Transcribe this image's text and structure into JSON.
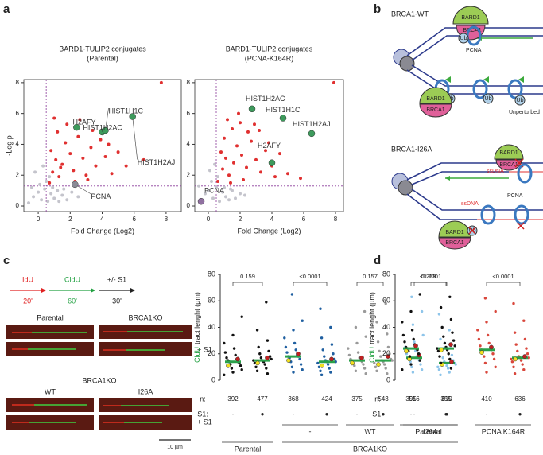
{
  "panel_labels": [
    "a",
    "b",
    "c",
    "d"
  ],
  "a": {
    "plots": [
      {
        "type": "scatter",
        "title": "BARD1-TULIP2 conjugates",
        "subtitle": "(Parental)",
        "x_label": "Fold Change (Log2)",
        "y_label": "-Log p",
        "xlim": [
          -0.9,
          8.95
        ],
        "ylim": [
          -0.36,
          8.2
        ],
        "xticks": [
          0,
          2,
          4,
          6,
          8
        ],
        "yticks": [
          0,
          2,
          4,
          6,
          8
        ],
        "threshold_x": 0.5,
        "threshold_y": 1.3,
        "background": {
          "color": "#c4c4cc",
          "x": [
            -0.6,
            -0.3,
            0.0,
            0.2,
            0.4,
            0.6,
            0.8,
            1.0,
            1.2,
            1.5,
            1.8,
            2.1,
            -0.4,
            0.1,
            0.5,
            0.9,
            1.3,
            -0.2,
            0.3,
            0.7,
            2.5,
            1.6
          ],
          "y": [
            0.2,
            0.6,
            0.9,
            0.4,
            1.1,
            0.3,
            0.8,
            0.5,
            1.0,
            0.7,
            0.4,
            0.9,
            1.2,
            1.4,
            1.6,
            1.2,
            0.3,
            2.2,
            2.6,
            1.9,
            0.6,
            1.1
          ]
        },
        "hits": {
          "color": "#e03030",
          "x": [
            0.7,
            0.9,
            1.1,
            1.3,
            1.5,
            1.7,
            2.0,
            2.2,
            2.5,
            2.8,
            3.0,
            3.3,
            3.6,
            3.9,
            4.2,
            4.6,
            5.0,
            5.5,
            1.2,
            1.8,
            2.6,
            3.4,
            0.8,
            1.0,
            2.3,
            3.1,
            4.4,
            6.6,
            7.7,
            1.4
          ],
          "y": [
            1.5,
            2.2,
            3.0,
            1.9,
            2.7,
            4.1,
            3.4,
            2.3,
            4.5,
            3.1,
            2.0,
            3.8,
            2.6,
            4.3,
            3.2,
            2.1,
            3.5,
            2.6,
            4.8,
            5.3,
            5.6,
            4.9,
            3.6,
            5.7,
            1.6,
            1.7,
            4.0,
            3.0,
            8.0,
            2.5
          ]
        },
        "labeled": [
          {
            "label": "H2AFY",
            "x": 4.0,
            "y": 4.8,
            "color": "#3d9a5c"
          },
          {
            "label": "HIST1H1C",
            "x": 4.2,
            "y": 4.9,
            "color": "#3d9a5c"
          },
          {
            "label": "HIST1H2AC",
            "x": 2.4,
            "y": 5.1,
            "color": "#3d9a5c"
          },
          {
            "label": "HIST1H2AJ",
            "x": 5.9,
            "y": 5.8,
            "color": "#3d9a5c"
          },
          {
            "label": "PCNA",
            "x": 2.3,
            "y": 1.4,
            "color": "#8a8a96"
          }
        ]
      },
      {
        "type": "scatter",
        "title": "BARD1-TULIP2 conjugates",
        "subtitle": "(PCNA-K164R)",
        "x_label": "Fold Change (Log2)",
        "xlim": [
          -0.85,
          8.5
        ],
        "ylim": [
          -0.36,
          8.2
        ],
        "xticks": [
          0,
          2,
          4,
          6,
          8
        ],
        "yticks": [
          0,
          2,
          4,
          6,
          8
        ],
        "threshold_x": 0.5,
        "threshold_y": 1.3,
        "background": {
          "color": "#c4c4cc",
          "x": [
            -0.5,
            -0.2,
            0.0,
            0.3,
            0.5,
            0.7,
            0.9,
            1.1,
            1.4,
            1.7,
            2.0,
            -0.6,
            0.2,
            0.6,
            1.0,
            1.3,
            0.1,
            0.4,
            2.3,
            1.5
          ],
          "y": [
            0.4,
            0.8,
            1.0,
            0.5,
            1.2,
            0.3,
            0.9,
            0.6,
            1.1,
            0.5,
            0.8,
            1.3,
            1.6,
            1.9,
            1.2,
            0.4,
            2.3,
            2.7,
            0.7,
            1.0
          ]
        },
        "hits": {
          "color": "#e03030",
          "x": [
            0.6,
            0.9,
            1.1,
            1.3,
            1.6,
            1.8,
            2.1,
            2.4,
            2.7,
            3.0,
            3.3,
            3.6,
            4.0,
            4.5,
            5.0,
            5.8,
            1.0,
            1.5,
            2.0,
            2.5,
            3.2,
            0.8,
            1.2,
            1.9,
            2.9,
            3.8,
            7.9,
            1.4,
            2.2,
            4.2
          ],
          "y": [
            1.6,
            2.4,
            3.1,
            2.0,
            2.8,
            3.9,
            3.3,
            2.5,
            4.2,
            3.0,
            2.2,
            3.6,
            2.6,
            3.4,
            2.1,
            1.8,
            4.4,
            5.0,
            5.4,
            4.8,
            4.9,
            3.5,
            5.6,
            6.0,
            5.3,
            4.1,
            8.0,
            1.5,
            1.7,
            1.9
          ]
        },
        "labeled": [
          {
            "label": "HIST1H2AC",
            "x": 2.75,
            "y": 6.3,
            "color": "#3d9a5c"
          },
          {
            "label": "HIST1H1C",
            "x": 4.7,
            "y": 5.7,
            "color": "#3d9a5c"
          },
          {
            "label": "HIST1H2AJ",
            "x": 6.5,
            "y": 4.7,
            "color": "#3d9a5c"
          },
          {
            "label": "H2AFY",
            "x": 4.0,
            "y": 2.8,
            "color": "#3d9a5c"
          },
          {
            "label": "PCNA",
            "x": -0.45,
            "y": 0.3,
            "color": "#9070a0"
          }
        ]
      }
    ]
  },
  "b": {
    "labels": [
      "BRCA1-WT",
      "BARD1",
      "BRCA1",
      "Ub",
      "PCNA",
      "Ub",
      "Ub",
      "Ub",
      "BARD1",
      "BRCA1",
      "Unperturbed",
      "BRCA1-I26A",
      "BARD1",
      "BRCA1",
      "ssDNA",
      "PCNA",
      "ssDNA",
      "BARD1",
      "BRCA1",
      "Ub"
    ]
  },
  "c": {
    "schematic": [
      {
        "label": "IdU",
        "time": "20'",
        "color": "#e02020"
      },
      {
        "label": "CldU",
        "time": "60'",
        "color": "#20a040"
      },
      {
        "label": "+/- S1",
        "time": "30'",
        "color": "#222222"
      }
    ],
    "images": {
      "labels": [
        "Parental",
        "BRCA1KO",
        "+ S1",
        "BRCA1KO",
        "WT",
        "I26A",
        "+ S1"
      ],
      "scale_bar": "10 µm"
    },
    "plot": {
      "type": "dot",
      "y_label_colored": "CldU",
      "y_label_rest": "tract lenght (μm)",
      "ylim": [
        0,
        80
      ],
      "yticks": [
        0,
        20,
        40,
        60,
        80
      ],
      "n_label": "n:",
      "s1_label": "S1:",
      "median_color": "#2aa14a",
      "groups": [
        {
          "color": "#111111",
          "n": "392",
          "s1": "-",
          "median": 14,
          "replicates": [
            11,
            16
          ],
          "values": [
            4,
            6,
            8,
            9,
            11,
            12,
            13,
            14,
            14,
            15,
            16,
            17,
            19,
            21,
            24,
            28,
            34,
            48
          ]
        },
        {
          "color": "#111111",
          "n": "477",
          "s1": "●",
          "median": 15,
          "replicates": [
            13,
            17
          ],
          "values": [
            5,
            7,
            9,
            10,
            12,
            13,
            14,
            15,
            15,
            16,
            17,
            18,
            20,
            22,
            25,
            30,
            38,
            59
          ]
        },
        {
          "color": "#1f5fa0",
          "n": "368",
          "s1": "-",
          "median": 18,
          "replicates": [
            15,
            20
          ],
          "values": [
            6,
            8,
            10,
            12,
            14,
            16,
            17,
            18,
            18,
            19,
            21,
            23,
            25,
            28,
            32,
            38,
            45,
            65
          ]
        },
        {
          "color": "#1f5fa0",
          "n": "424",
          "s1": "●",
          "median": 14,
          "replicates": [
            11,
            16
          ],
          "values": [
            4,
            6,
            7,
            9,
            10,
            12,
            13,
            14,
            14,
            15,
            16,
            18,
            20,
            23,
            27,
            32,
            40,
            54
          ]
        },
        {
          "color": "#9a9a9a",
          "n": "375",
          "s1": "-",
          "median": 15,
          "replicates": [
            13,
            17
          ],
          "values": [
            5,
            7,
            9,
            11,
            12,
            13,
            14,
            15,
            15,
            16,
            17,
            19,
            21,
            24,
            28,
            33,
            40,
            52
          ]
        },
        {
          "color": "#9a9a9a",
          "n": "543",
          "s1": "●",
          "median": 15,
          "replicates": [
            12,
            18
          ],
          "values": [
            5,
            7,
            9,
            10,
            12,
            13,
            14,
            15,
            15,
            16,
            18,
            20,
            22,
            25,
            29,
            35,
            44,
            58
          ]
        },
        {
          "color": "#8ec5ea",
          "n": "516",
          "s1": "-",
          "median": 17,
          "replicates": [
            16,
            19
          ],
          "values": [
            6,
            8,
            10,
            12,
            14,
            15,
            16,
            17,
            17,
            18,
            20,
            22,
            25,
            29,
            34,
            42,
            52,
            63
          ]
        },
        {
          "color": "#8ec5ea",
          "n": "610",
          "s1": "●",
          "median": 13,
          "replicates": [
            12,
            14
          ],
          "values": [
            4,
            6,
            8,
            9,
            10,
            11,
            12,
            13,
            13,
            14,
            15,
            17,
            19,
            22,
            26,
            31,
            38,
            50
          ]
        }
      ],
      "comparisons": [
        {
          "label": "0.159",
          "groups": [
            0,
            1
          ]
        },
        {
          "label": "<0.0001",
          "groups": [
            2,
            3
          ]
        },
        {
          "label": "0.157",
          "groups": [
            4,
            5
          ]
        },
        {
          "label": "<0.0001",
          "groups": [
            6,
            7
          ]
        }
      ],
      "group_labels": [
        {
          "label": "Parental",
          "groups": [
            0,
            1
          ]
        },
        {
          "label": "-",
          "groups": [
            2,
            3
          ]
        },
        {
          "label": "WT",
          "groups": [
            4,
            5
          ]
        },
        {
          "label": "I26A",
          "groups": [
            6,
            7
          ]
        },
        {
          "label": "BRCA1KO",
          "groups": [
            2,
            7
          ]
        }
      ]
    }
  },
  "d": {
    "plot": {
      "type": "dot",
      "y_label_colored": "CldU",
      "y_label_rest": "tract lenght (μm)",
      "ylim": [
        0,
        80
      ],
      "yticks": [
        0,
        20,
        40,
        60,
        80
      ],
      "n_label": "n:",
      "s1_label": "S1:",
      "median_color": "#2aa14a",
      "groups": [
        {
          "color": "#111111",
          "n": "305",
          "s1": "-",
          "median": 24,
          "replicates": [
            22,
            26
          ],
          "values": [
            8,
            12,
            15,
            18,
            20,
            22,
            23,
            24,
            24,
            25,
            27,
            29,
            31,
            34,
            38,
            44,
            52,
            65
          ]
        },
        {
          "color": "#111111",
          "n": "355",
          "s1": "●",
          "median": 24,
          "replicates": [
            23,
            27
          ],
          "values": [
            9,
            13,
            16,
            18,
            20,
            22,
            23,
            24,
            25,
            26,
            28,
            30,
            33,
            36,
            40,
            46,
            55,
            63
          ]
        },
        {
          "color": "#d9473c",
          "n": "410",
          "s1": "-",
          "median": 23,
          "replicates": [
            21,
            25
          ],
          "values": [
            6,
            10,
            13,
            16,
            18,
            20,
            22,
            23,
            23,
            24,
            26,
            28,
            31,
            34,
            38,
            44,
            52,
            62
          ]
        },
        {
          "color": "#d9473c",
          "n": "636",
          "s1": "●",
          "median": 17,
          "replicates": [
            16,
            18
          ],
          "values": [
            5,
            8,
            10,
            12,
            14,
            15,
            16,
            17,
            17,
            18,
            20,
            22,
            24,
            27,
            31,
            36,
            45,
            58
          ]
        }
      ],
      "comparisons": [
        {
          "label": "0.268",
          "groups": [
            0,
            1
          ]
        },
        {
          "label": "<0.0001",
          "groups": [
            2,
            3
          ]
        }
      ],
      "group_labels": [
        {
          "label": "Parental",
          "groups": [
            0,
            1
          ]
        },
        {
          "label": "PCNA K164R",
          "groups": [
            2,
            3
          ]
        }
      ]
    }
  }
}
